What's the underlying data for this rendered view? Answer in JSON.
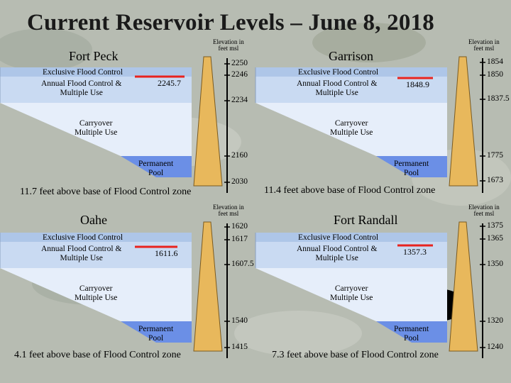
{
  "title": "Current Reservoir Levels – June 8, 2018",
  "colors": {
    "exclusive_flood": "#aec6e8",
    "annual_flood": "#c9daf2",
    "carryover": "#e6eefa",
    "permanent_pool": "#6b8fe6",
    "dam": "#e8b85c",
    "current_line": "#e8231f"
  },
  "zone_labels": {
    "exclusive": "Exclusive Flood Control",
    "annual": "Annual Flood Control &\nMultiple Use",
    "carryover": "Carryover\nMultiple Use",
    "permanent": "Permanent\nPool"
  },
  "elev_header": "Elevation in\nfeet msl",
  "reservoirs": [
    {
      "name": "Fort Peck",
      "current": "2245.7",
      "note": "11.7 feet above base of Flood Control zone",
      "ticks": [
        "2250",
        "2246",
        "2234",
        "2160",
        "2030"
      ]
    },
    {
      "name": "Garrison",
      "current": "1848.9",
      "note": "11.4 feet above base of Flood Control zone",
      "ticks": [
        "1854",
        "1850",
        "1837.5",
        "1775",
        "1673"
      ]
    },
    {
      "name": "Oahe",
      "current": "1611.6",
      "note": "4.1 feet above base of Flood Control zone",
      "ticks": [
        "1620",
        "1617",
        "1607.5",
        "1540",
        "1415"
      ]
    },
    {
      "name": "Fort Randall",
      "current": "1357.3",
      "note": "7.3 feet above base of Flood Control zone",
      "ticks": [
        "1375",
        "1365",
        "1350",
        "1320",
        "1240"
      ]
    }
  ]
}
